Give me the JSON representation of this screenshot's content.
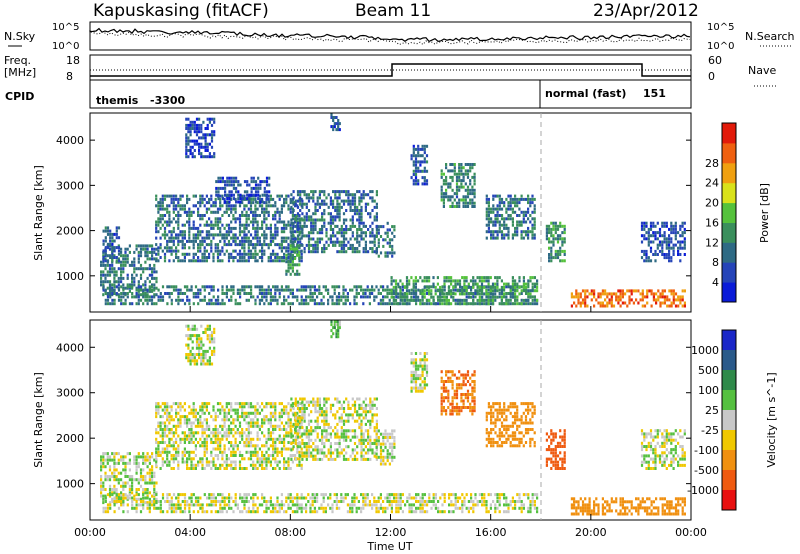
{
  "header": {
    "station": "Kapuskasing (fitACF)",
    "beam": "Beam 11",
    "date": "23/Apr/2012"
  },
  "noise_panel": {
    "left_label": "N.Sky",
    "right_label": "N.Search",
    "ytick_top": "10^5",
    "ytick_bottom": "10^0"
  },
  "freq_panel": {
    "left_label_top": "Freq.",
    "left_label_bottom": "[MHz]",
    "right_label": "Nave",
    "left_ticks": [
      "18",
      "8"
    ],
    "right_ticks": [
      "60",
      "0"
    ]
  },
  "cpid": {
    "label": "CPID",
    "segments": [
      {
        "name": "themis",
        "id": "-3300",
        "start_hour": 0,
        "end_hour": 18
      },
      {
        "name": "normal (fast)",
        "id": "151",
        "start_hour": 18,
        "end_hour": 24
      }
    ]
  },
  "xaxis": {
    "label": "Time UT",
    "ticks": [
      "00:00",
      "04:00",
      "08:00",
      "12:00",
      "16:00",
      "20:00",
      "00:00"
    ]
  },
  "chart_data": [
    {
      "type": "heatmap",
      "title": "",
      "xlabel": "Time UT",
      "ylabel": "Slant Range [km]",
      "xlim": [
        0,
        24
      ],
      "ylim": [
        200,
        4600
      ],
      "yticks": [
        1000,
        2000,
        3000,
        4000
      ],
      "colorbar": {
        "label": "Power [dB]",
        "ticks": [
          "4",
          "8",
          "12",
          "16",
          "20",
          "24",
          "28"
        ],
        "range": [
          0,
          32
        ],
        "colors": [
          "#0a1bd8",
          "#2544b8",
          "#2e6a84",
          "#3a8f5c",
          "#55c23c",
          "#d9e21b",
          "#f0a010",
          "#ef6010",
          "#e21a0a"
        ]
      },
      "regions": [
        {
          "t0": 0.4,
          "t1": 2.7,
          "r0": 550,
          "r1": 1700,
          "value": 10
        },
        {
          "t0": 0.5,
          "t1": 1.2,
          "r0": 1300,
          "r1": 2100,
          "value": 7
        },
        {
          "t0": 2.6,
          "t1": 8.5,
          "r0": 1300,
          "r1": 2800,
          "value": 9
        },
        {
          "t0": 3.8,
          "t1": 5.0,
          "r0": 3600,
          "r1": 4500,
          "value": 5
        },
        {
          "t0": 5.0,
          "t1": 7.2,
          "r0": 2600,
          "r1": 3200,
          "value": 6
        },
        {
          "t0": 8.0,
          "t1": 11.5,
          "r0": 1500,
          "r1": 2900,
          "value": 9
        },
        {
          "t0": 9.6,
          "t1": 10.0,
          "r0": 4200,
          "r1": 4600,
          "value": 6
        },
        {
          "t0": 11.4,
          "t1": 12.2,
          "r0": 1400,
          "r1": 2200,
          "value": 10
        },
        {
          "t0": 12.8,
          "t1": 13.5,
          "r0": 3000,
          "r1": 3900,
          "value": 7
        },
        {
          "t0": 14.0,
          "t1": 15.4,
          "r0": 2500,
          "r1": 3500,
          "value": 11
        },
        {
          "t0": 15.8,
          "t1": 17.8,
          "r0": 1800,
          "r1": 2800,
          "value": 9
        },
        {
          "t0": 7.8,
          "t1": 8.4,
          "r0": 1000,
          "r1": 1700,
          "value": 13
        },
        {
          "t0": 0.5,
          "t1": 17.9,
          "r0": 350,
          "r1": 800,
          "value": 10
        },
        {
          "t0": 12.0,
          "t1": 17.9,
          "r0": 350,
          "r1": 1000,
          "value": 13
        },
        {
          "t0": 18.2,
          "t1": 19.0,
          "r0": 1300,
          "r1": 2200,
          "value": 12
        },
        {
          "t0": 19.2,
          "t1": 23.8,
          "r0": 300,
          "r1": 700,
          "value": 26
        },
        {
          "t0": 22.0,
          "t1": 23.8,
          "r0": 1300,
          "r1": 2200,
          "value": 6
        }
      ]
    },
    {
      "type": "heatmap",
      "title": "",
      "xlabel": "Time UT",
      "ylabel": "Slant Range [km]",
      "xlim": [
        0,
        24
      ],
      "ylim": [
        200,
        4600
      ],
      "yticks": [
        1000,
        2000,
        3000,
        4000
      ],
      "colorbar": {
        "label": "Velocity [m s^-1]",
        "ticks": [
          "1000",
          "500",
          "100",
          "25",
          "-25",
          "-100",
          "-500",
          "-1000"
        ],
        "colors": [
          "#1a27c8",
          "#2a5a8a",
          "#2f8a4a",
          "#55c040",
          "#c8c8c8",
          "#f0c800",
          "#f09010",
          "#ef5a10",
          "#e81010"
        ]
      },
      "regions": [
        {
          "t0": 0.4,
          "t1": 2.7,
          "r0": 550,
          "r1": 1700,
          "value": 0
        },
        {
          "t0": 2.6,
          "t1": 8.5,
          "r0": 1300,
          "r1": 2800,
          "value": 0
        },
        {
          "t0": 3.8,
          "t1": 5.0,
          "r0": 3600,
          "r1": 4500,
          "value": 0
        },
        {
          "t0": 8.0,
          "t1": 11.5,
          "r0": 1500,
          "r1": 2900,
          "value": 0
        },
        {
          "t0": 9.6,
          "t1": 10.0,
          "r0": 4200,
          "r1": 4600,
          "value": 80
        },
        {
          "t0": 11.4,
          "t1": 12.2,
          "r0": 1400,
          "r1": 2200,
          "value": 0
        },
        {
          "t0": 12.8,
          "t1": 13.5,
          "r0": 3000,
          "r1": 3900,
          "value": 0
        },
        {
          "t0": 14.0,
          "t1": 15.4,
          "r0": 2500,
          "r1": 3500,
          "value": -500
        },
        {
          "t0": 15.8,
          "t1": 17.8,
          "r0": 1800,
          "r1": 2800,
          "value": -300
        },
        {
          "t0": 0.5,
          "t1": 17.9,
          "r0": 350,
          "r1": 800,
          "value": 0
        },
        {
          "t0": 18.2,
          "t1": 19.0,
          "r0": 1300,
          "r1": 2200,
          "value": -600
        },
        {
          "t0": 19.2,
          "t1": 23.8,
          "r0": 300,
          "r1": 700,
          "value": -200
        },
        {
          "t0": 22.0,
          "t1": 23.8,
          "r0": 1300,
          "r1": 2200,
          "value": 0
        }
      ]
    }
  ]
}
